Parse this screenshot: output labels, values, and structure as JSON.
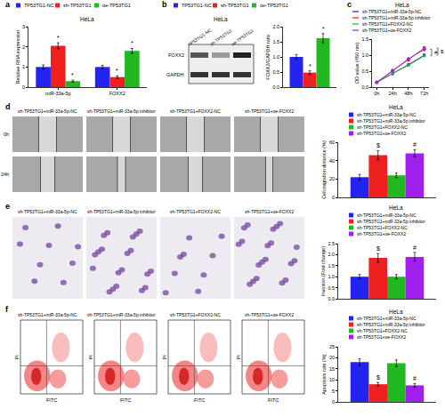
{
  "panel_labels": [
    "a",
    "b",
    "c",
    "d",
    "e",
    "f"
  ],
  "chart_data": [
    {
      "type": "bar",
      "title": "HeLa",
      "ylabel": "Relative RNA expression",
      "categories": [
        "miR-33a-5p",
        "FOXX2"
      ],
      "ylim": [
        0,
        3
      ],
      "yticks": [
        0,
        1,
        2,
        3
      ],
      "series": [
        {
          "name": "TP53TG1-NC",
          "color": "#2424f0",
          "values": [
            1.0,
            1.0
          ],
          "errors": [
            0.1,
            0.08
          ]
        },
        {
          "name": "sh-TP53TG1",
          "color": "#f02020",
          "values": [
            2.05,
            0.5
          ],
          "errors": [
            0.15,
            0.06
          ],
          "annotations": [
            "*",
            "*"
          ]
        },
        {
          "name": "oe-TP53TG1",
          "color": "#22b822",
          "values": [
            0.3,
            1.8
          ],
          "errors": [
            0.05,
            0.12
          ],
          "annotations": [
            "*",
            "*"
          ]
        }
      ]
    },
    {
      "type": "bar",
      "ylabel": "FOXX2/GAPDH ratio",
      "categories": [
        null
      ],
      "tick_labels": "y",
      "ylim": [
        0,
        2
      ],
      "yticks": [
        {
          "value": 0,
          "label": "0.0"
        },
        {
          "value": 0.5,
          "label": "0.5"
        },
        {
          "value": 1,
          "label": "1.0"
        },
        {
          "value": 1.5,
          "label": "1.5"
        },
        {
          "value": 2,
          "label": "2.0"
        }
      ],
      "series": [
        {
          "name": "TP53TG1-NC",
          "color": "#2424f0",
          "values": [
            1.0
          ],
          "errors": [
            0.08
          ]
        },
        {
          "name": "sh-TP53TG1",
          "color": "#f02020",
          "values": [
            0.48
          ],
          "errors": [
            0.06
          ],
          "annotations": [
            "*"
          ]
        },
        {
          "name": "oe-TP53TG1",
          "color": "#22b822",
          "values": [
            1.62
          ],
          "errors": [
            0.15
          ],
          "annotations": [
            "*"
          ]
        }
      ]
    },
    {
      "type": "line",
      "title": "HeLa",
      "ylabel": "OD value (450 nm)",
      "categories": [
        "0h",
        "24h",
        "48h",
        "72h"
      ],
      "ylim": [
        0,
        1.5
      ],
      "yticks": [
        {
          "value": 0,
          "label": "0.0"
        },
        {
          "value": 0.5,
          "label": "0.5"
        },
        {
          "value": 1,
          "label": "1.0"
        },
        {
          "value": 1.5,
          "label": "1.5"
        }
      ],
      "series": [
        {
          "name": "sh-TP53TG1+miR-33a-5p-NC",
          "color": "#2424f0",
          "marker": "circle",
          "values": [
            0.15,
            0.42,
            0.7,
            1.0
          ],
          "errors": [
            0.02,
            0.03,
            0.03,
            0.04
          ]
        },
        {
          "name": "sh-TP53TG1+miR-33a-5p inhibitor",
          "color": "#f02020",
          "marker": "square",
          "values": [
            0.15,
            0.5,
            0.85,
            1.22
          ],
          "errors": [
            0.02,
            0.03,
            0.04,
            0.05
          ]
        },
        {
          "name": "sh-TP53TG1+FOXX2-NC",
          "color": "#22b822",
          "marker": "triangle-up",
          "values": [
            0.15,
            0.43,
            0.68,
            0.98
          ],
          "errors": [
            0.02,
            0.03,
            0.03,
            0.04
          ]
        },
        {
          "name": "sh-TP53TG1+oe-FOXX2",
          "color": "#a020f0",
          "marker": "diamond",
          "values": [
            0.15,
            0.52,
            0.88,
            1.18
          ],
          "errors": [
            0.02,
            0.03,
            0.04,
            0.05
          ]
        }
      ],
      "annotations": [
        {
          "text": "#",
          "between": [
            "sh-TP53TG1+FOXX2-NC",
            "sh-TP53TG1+oe-FOXX2"
          ]
        },
        {
          "text": "$",
          "between": [
            "sh-TP53TG1+miR-33a-5p-NC",
            "sh-TP53TG1+miR-33a-5p inhibitor"
          ]
        }
      ]
    },
    {
      "type": "bar",
      "title": "HeLa",
      "ylabel": "Cell migration distance (%)",
      "categories": [
        null
      ],
      "tick_labels": "y",
      "ylim": [
        0,
        60
      ],
      "yticks": [
        0,
        20,
        40,
        60
      ],
      "series": [
        {
          "name": "sh-TP53TG1+miR-33a-5p-NC",
          "color": "#2424f0",
          "values": [
            22
          ],
          "errors": [
            3
          ]
        },
        {
          "name": "sh-TP53TG1+miR-33a-5p inhibitor",
          "color": "#f02020",
          "values": [
            46
          ],
          "errors": [
            5
          ],
          "annotations": [
            "$"
          ]
        },
        {
          "name": "sh-TP53TG1+FOXX2-NC",
          "color": "#22b822",
          "values": [
            24
          ],
          "errors": [
            2.5
          ]
        },
        {
          "name": "sh-TP53TG1+oe-FOXX2",
          "color": "#a020f0",
          "values": [
            48
          ],
          "errors": [
            4
          ],
          "annotations": [
            "#"
          ]
        }
      ]
    },
    {
      "type": "bar",
      "title": "HeLa",
      "ylabel": "Invasion (Fold change)",
      "categories": [
        null
      ],
      "tick_labels": "y",
      "ylim": [
        0,
        2.5
      ],
      "yticks": [
        {
          "value": 0,
          "label": "0.0"
        },
        {
          "value": 0.5,
          "label": "0.5"
        },
        {
          "value": 1,
          "label": "1.0"
        },
        {
          "value": 1.5,
          "label": "1.5"
        },
        {
          "value": 2,
          "label": "2.0"
        },
        {
          "value": 2.5,
          "label": "2.5"
        }
      ],
      "series": [
        {
          "name": "sh-TP53TG1+miR-33a-5p-NC",
          "color": "#2424f0",
          "values": [
            1.0
          ],
          "errors": [
            0.1
          ]
        },
        {
          "name": "sh-TP53TG1+miR-33a-5p inhibitor",
          "color": "#f02020",
          "values": [
            1.85
          ],
          "errors": [
            0.2
          ],
          "annotations": [
            "$"
          ]
        },
        {
          "name": "sh-TP53TG1+FOXX2-NC",
          "color": "#22b822",
          "values": [
            1.0
          ],
          "errors": [
            0.1
          ]
        },
        {
          "name": "sh-TP53TG1+oe-FOXX2",
          "color": "#a020f0",
          "values": [
            1.9
          ],
          "errors": [
            0.2
          ],
          "annotations": [
            "#"
          ]
        }
      ]
    },
    {
      "type": "bar",
      "title": "HeLa",
      "ylabel": "Apoptosis rate (%)",
      "categories": [
        null
      ],
      "tick_labels": "y",
      "ylim": [
        0,
        25
      ],
      "yticks": [
        0,
        5,
        10,
        15,
        20,
        25
      ],
      "series": [
        {
          "name": "sh-TP53TG1+miR-33a-5p-NC",
          "color": "#2424f0",
          "values": [
            18
          ],
          "errors": [
            1.5
          ]
        },
        {
          "name": "sh-TP53TG1+miR-33a-5p inhibitor",
          "color": "#f02020",
          "values": [
            8
          ],
          "errors": [
            0.8
          ],
          "annotations": [
            "$"
          ]
        },
        {
          "name": "sh-TP53TG1+FOXX2-NC",
          "color": "#22b822",
          "values": [
            17.5
          ],
          "errors": [
            1.5
          ]
        },
        {
          "name": "sh-TP53TG1+oe-FOXX2",
          "color": "#a020f0",
          "values": [
            7.5
          ],
          "errors": [
            0.8
          ],
          "annotations": [
            "#"
          ]
        }
      ]
    }
  ],
  "blot": {
    "title": "HeLa",
    "lanes": [
      "TP53TG1-NC",
      "sh-TP53TG1",
      "oe-TP53TG1"
    ],
    "bands": [
      "FOXX2",
      "GAPDH"
    ]
  },
  "wound": {
    "columns": [
      "sh-TP53TG1+miR-33a-5p-NC",
      "sh-TP53TG1+miR-33a-5p inhibitor",
      "sh-TP53TG1+FOXX2-NC",
      "sh-TP53TG1+oe-FOXX2"
    ],
    "rows": [
      "0h",
      "24h"
    ]
  },
  "invasion": {
    "columns": [
      "sh-TP53TG1+miR-33a-5p-NC",
      "sh-TP53TG1+miR-33a-5p inhibitor",
      "sh-TP53TG1+FOXX2-NC",
      "sh-TP53TG1+oe-FOXX2"
    ]
  },
  "flow": {
    "columns": [
      "sh-TP53TG1+miR-33a-5p-NC",
      "sh-TP53TG1+miR-33a-5p inhibitor",
      "sh-TP53TG1+FOXX2-NC",
      "sh-TP53TG1+oe-FOXX2"
    ],
    "xlabel": "FITC",
    "ylabel": "PI"
  }
}
